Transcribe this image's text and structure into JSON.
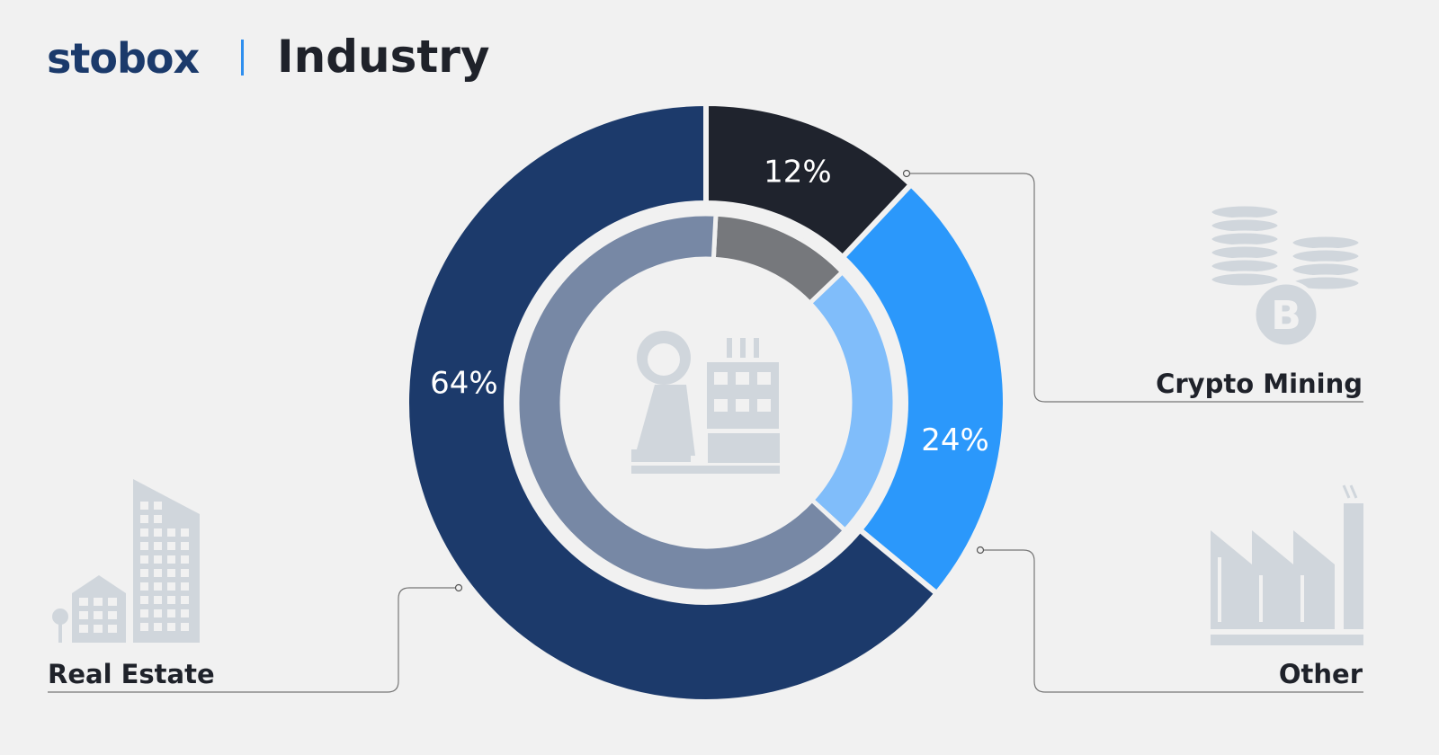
{
  "header": {
    "logo": "stobox",
    "title": "Industry"
  },
  "chart_data": {
    "type": "pie",
    "title": "Industry",
    "categories": [
      "Crypto Mining",
      "Other",
      "Real Estate"
    ],
    "values": [
      12,
      24,
      64
    ],
    "value_labels": [
      "12%",
      "24%",
      "64%"
    ],
    "colors": [
      "#1f232d",
      "#2b98fb",
      "#1c3a6b"
    ],
    "inner_colors": [
      "#76787c",
      "#80bdfa",
      "#7788a5"
    ],
    "icon_color": "#d0d6dc",
    "icons": [
      "coins-bitcoin-icon",
      "factory-icon",
      "buildings-icon",
      "industry-icon"
    ]
  }
}
